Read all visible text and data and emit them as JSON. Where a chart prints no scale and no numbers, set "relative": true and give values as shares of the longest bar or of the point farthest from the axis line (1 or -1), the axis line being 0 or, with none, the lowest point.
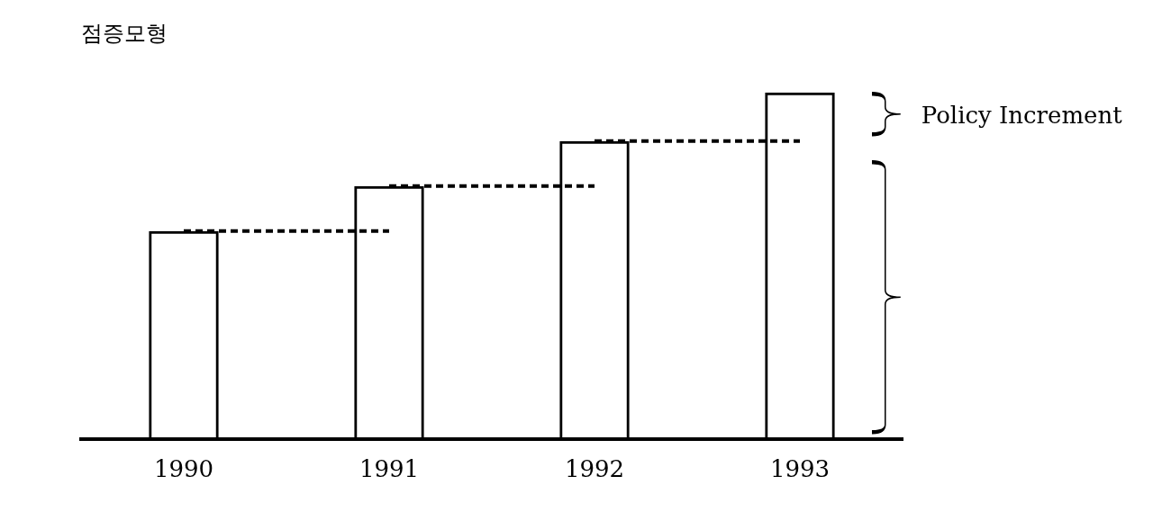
{
  "chart_data": {
    "type": "bar",
    "title": "점증모형",
    "relative": true,
    "categories": [
      "1990",
      "1991",
      "1992",
      "1993"
    ],
    "series": [
      {
        "color": "#000000",
        "values": [
          0.6,
          0.73,
          0.86,
          1
        ]
      },
      {
        "type": "line",
        "line_style": "dotted",
        "color": "#000000",
        "values": [
          0.6,
          0.6,
          null,
          null
        ]
      },
      {
        "type": "line",
        "line_style": "dotted",
        "color": "#000000",
        "values": [
          null,
          0.73,
          0.73,
          null
        ]
      },
      {
        "type": "line",
        "line_style": "dotted",
        "color": "#000000",
        "values": [
          null,
          null,
          0.86,
          0.86
        ]
      }
    ],
    "marker": "none",
    "grid": false,
    "legend": false,
    "annotations": [
      "Policy Increment"
    ]
  }
}
